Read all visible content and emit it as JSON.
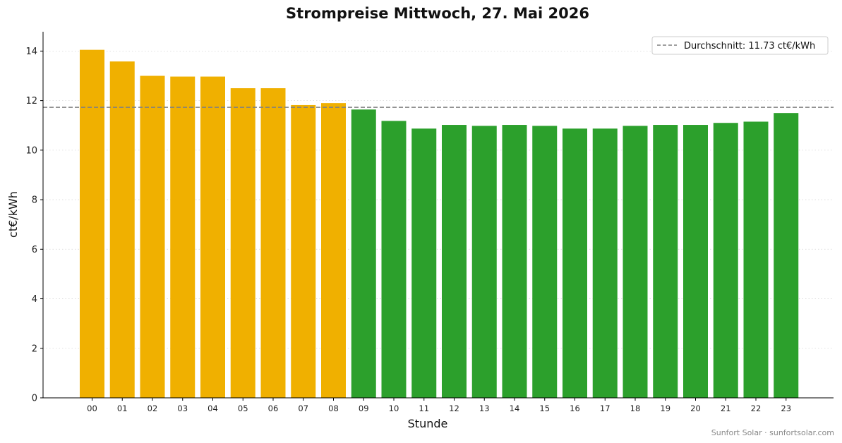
{
  "chart_data": {
    "type": "bar",
    "title": "Strompreise Mittwoch, 27. Mai 2026",
    "xlabel": "Stunde",
    "ylabel": "ct€/kWh",
    "categories": [
      "00",
      "01",
      "02",
      "03",
      "04",
      "05",
      "06",
      "07",
      "08",
      "09",
      "10",
      "11",
      "12",
      "13",
      "14",
      "15",
      "16",
      "17",
      "18",
      "19",
      "20",
      "21",
      "22",
      "23"
    ],
    "values": [
      14.05,
      13.58,
      13.0,
      12.97,
      12.97,
      12.5,
      12.5,
      11.82,
      11.9,
      11.64,
      11.18,
      10.87,
      11.02,
      10.98,
      11.02,
      10.98,
      10.87,
      10.87,
      10.98,
      11.02,
      11.02,
      11.1,
      11.15,
      11.5
    ],
    "bar_colors": [
      "#f0b000",
      "#f0b000",
      "#f0b000",
      "#f0b000",
      "#f0b000",
      "#f0b000",
      "#f0b000",
      "#f0b000",
      "#f0b000",
      "#2ca02c",
      "#2ca02c",
      "#2ca02c",
      "#2ca02c",
      "#2ca02c",
      "#2ca02c",
      "#2ca02c",
      "#2ca02c",
      "#2ca02c",
      "#2ca02c",
      "#2ca02c",
      "#2ca02c",
      "#2ca02c",
      "#2ca02c",
      "#2ca02c"
    ],
    "ylim": [
      0,
      14.78
    ],
    "yticks": [
      "0",
      "2",
      "4",
      "6",
      "8",
      "10",
      "12",
      "14"
    ],
    "average": 11.73,
    "average_color": "#808080",
    "legend": {
      "label": "Durchschnitt: 11.73 ct€/kWh",
      "position": "top-right"
    },
    "grid": "horizontal dotted"
  },
  "footer": "Sunfort Solar · sunfortsolar.com"
}
